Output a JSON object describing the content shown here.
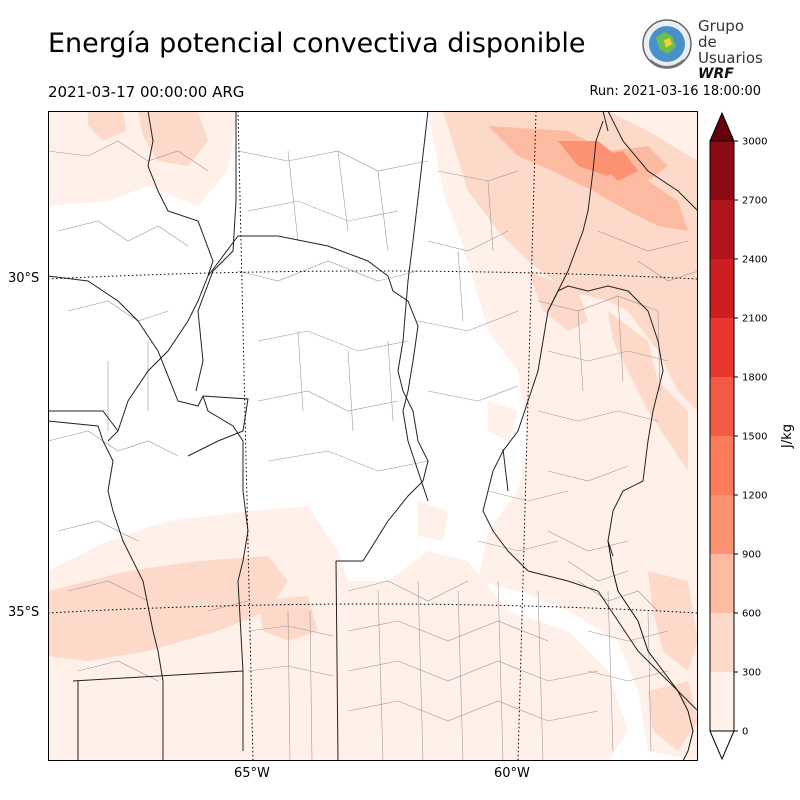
{
  "title": "Energía potencial convectiva disponible",
  "valid_time": "2021-03-17 00:00:00 ARG",
  "run_time": "Run: 2021-03-16 18:00:00",
  "logo": {
    "line1": "Grupo de",
    "line2": "Usuarios",
    "line3": "WRF"
  },
  "map": {
    "lat_labels": [
      "30°S",
      "35°S"
    ],
    "lon_labels": [
      "65°W",
      "60°W"
    ],
    "shading_color": "#fdd9c9"
  },
  "colorbar": {
    "unit": "J/kg",
    "ticks": [
      "0",
      "300",
      "600",
      "900",
      "1200",
      "1500",
      "1800",
      "2100",
      "2400",
      "2700",
      "3000"
    ],
    "colors": [
      "#fff0ea",
      "#fdd9c9",
      "#fcbba1",
      "#fc9272",
      "#fb7b5a",
      "#f35b45",
      "#e8372c",
      "#cd1e21",
      "#b1141a",
      "#8c0a11",
      "#67000d"
    ]
  }
}
